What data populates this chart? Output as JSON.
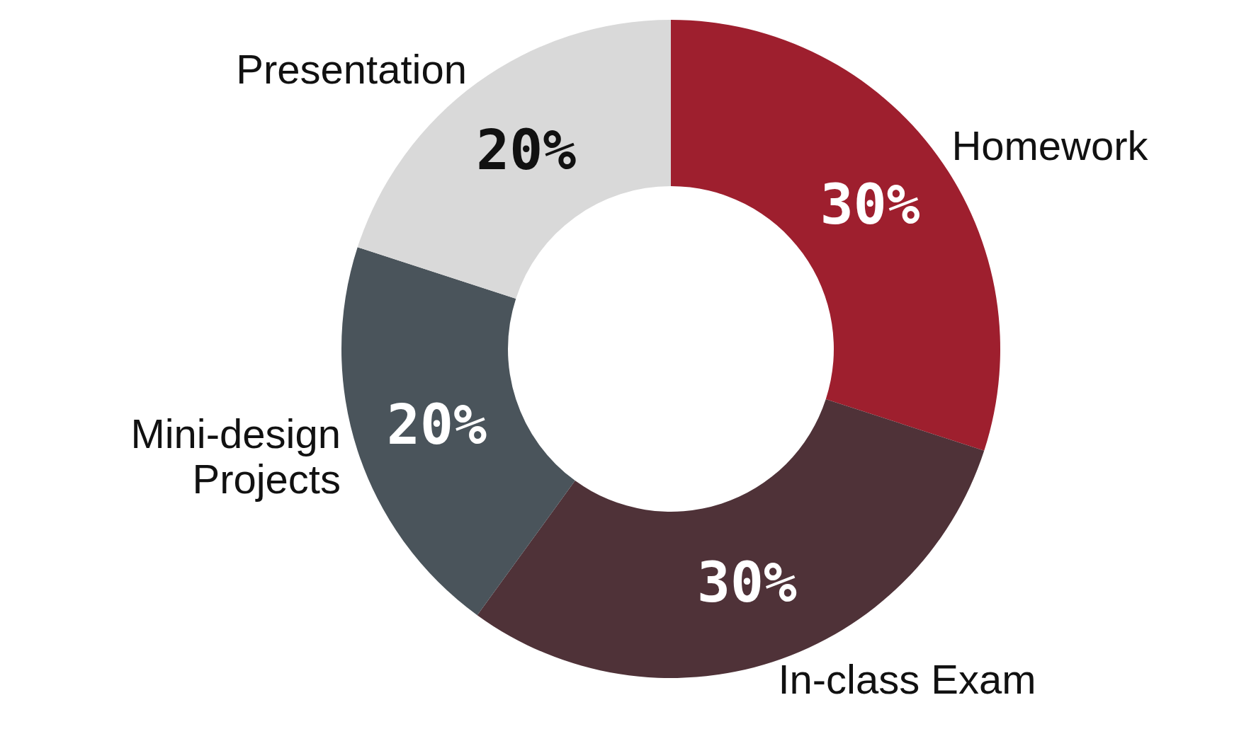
{
  "chart_data": {
    "type": "donut",
    "categories": [
      "Homework",
      "In-class Exam",
      "Mini-design Projects",
      "Presentation"
    ],
    "values": [
      30,
      30,
      20,
      20
    ],
    "colors": [
      "#9e1f2e",
      "#4f3238",
      "#4a545b",
      "#d9d9d9"
    ],
    "value_labels": [
      "30%",
      "30%",
      "20%",
      "20%"
    ]
  }
}
